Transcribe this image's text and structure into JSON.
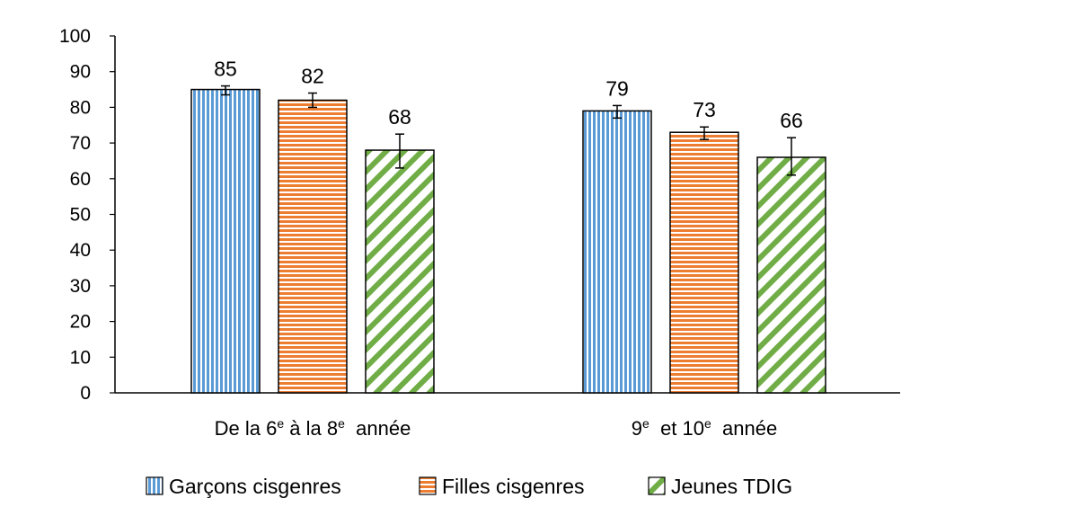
{
  "chart_data": {
    "type": "bar",
    "categories": [
      {
        "main": "De la 6",
        "sup1": "e",
        "mid": " à la 8",
        "sup2": "e",
        "tail": "  année"
      },
      {
        "main": "9",
        "sup1": "e",
        "mid": "  et 10",
        "sup2": "e",
        "tail": "  année"
      }
    ],
    "series": [
      {
        "name": "Garçons cisgenres",
        "values": [
          85,
          79
        ],
        "labels": [
          "85",
          "79"
        ],
        "err_low": [
          83.5,
          77
        ],
        "err_high": [
          86,
          80.5
        ],
        "color": "#5b9bd5",
        "pattern": "vertical"
      },
      {
        "name": "Filles cisgenres",
        "values": [
          82,
          73
        ],
        "labels": [
          "82",
          "73"
        ],
        "err_low": [
          80,
          71
        ],
        "err_high": [
          84,
          74.5
        ],
        "color": "#ed7d31",
        "pattern": "horizontal"
      },
      {
        "name": "Jeunes TDIG",
        "values": [
          68,
          66
        ],
        "labels": [
          "68",
          "66"
        ],
        "err_low": [
          63,
          61
        ],
        "err_high": [
          72.5,
          71.5
        ],
        "color": "#70ad47",
        "pattern": "diagonal"
      }
    ],
    "ylim": [
      0,
      100
    ],
    "yticks": [
      "0",
      "10",
      "20",
      "30",
      "40",
      "50",
      "60",
      "70",
      "80",
      "90",
      "100"
    ],
    "title": "",
    "xlabel": "",
    "ylabel": "",
    "grid": false,
    "legend": "bottom"
  }
}
